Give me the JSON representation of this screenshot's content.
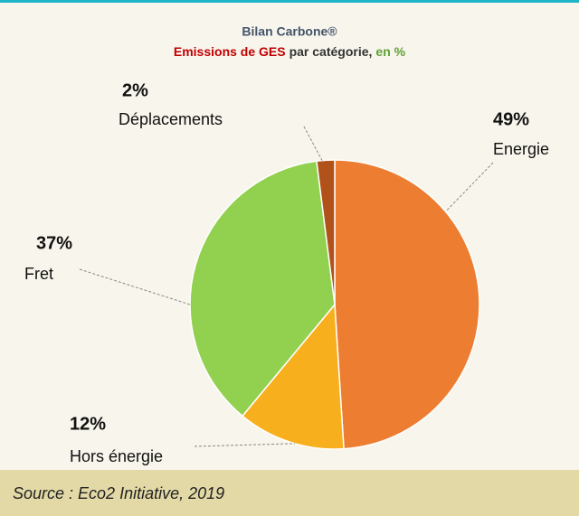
{
  "chart_data": {
    "type": "pie",
    "title": "Bilan Carbone®",
    "subtitle": [
      "Emissions de GES",
      "par catégorie,",
      "en %"
    ],
    "categories": [
      "Energie",
      "Hors énergie",
      "Fret",
      "Déplacements"
    ],
    "values": [
      49,
      12,
      37,
      2
    ],
    "value_labels": [
      "49%",
      "12%",
      "37%",
      "2%"
    ],
    "colors": [
      "#ED7D31",
      "#F8AF1E",
      "#92D050",
      "#B0521A"
    ],
    "source": "Source : Eco2 Initiative, 2019"
  }
}
